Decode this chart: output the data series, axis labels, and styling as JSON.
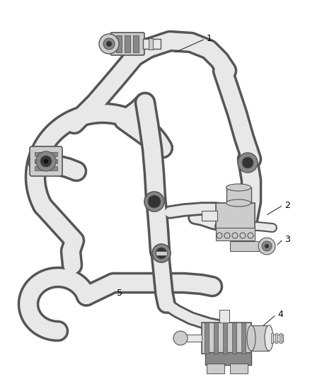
{
  "bg_color": "#ffffff",
  "tube_fill": "#e8e8e8",
  "tube_outline": "#555555",
  "dark_gray": "#333333",
  "mid_gray": "#888888",
  "light_gray": "#cccccc",
  "label_color": "#000000",
  "tube_lw_outer": 22,
  "tube_lw_inner": 18,
  "tube_lw_outer_sm": 14,
  "tube_lw_inner_sm": 11,
  "figsize": [
    4.38,
    5.33
  ],
  "dpi": 100,
  "xlim": [
    0,
    438
  ],
  "ylim": [
    0,
    533
  ]
}
